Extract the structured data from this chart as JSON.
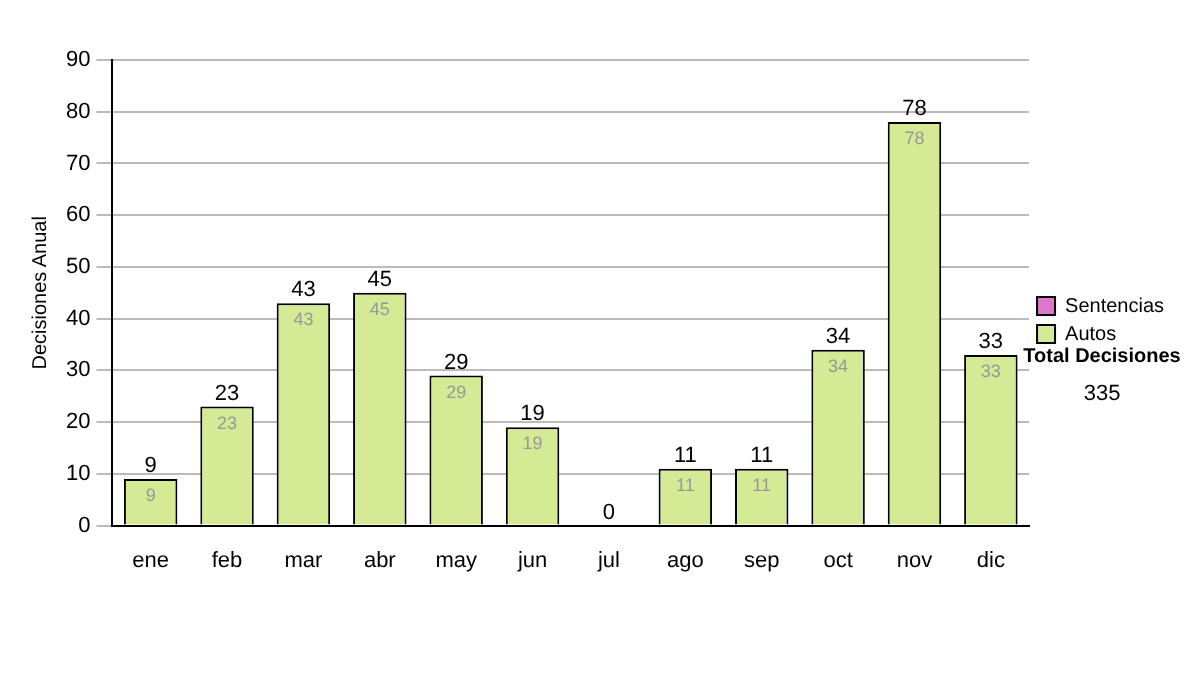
{
  "chart_data": {
    "type": "bar",
    "ylabel": "Decisiones Anual",
    "categories": [
      "ene",
      "feb",
      "mar",
      "abr",
      "may",
      "jun",
      "jul",
      "ago",
      "sep",
      "oct",
      "nov",
      "dic"
    ],
    "series": [
      {
        "name": "Sentencias",
        "color": "#dd77cc",
        "values": [
          0,
          0,
          0,
          0,
          0,
          0,
          0,
          0,
          0,
          0,
          0,
          0
        ]
      },
      {
        "name": "Autos",
        "color": "#d4ea94",
        "values": [
          9,
          23,
          43,
          45,
          29,
          19,
          0,
          11,
          11,
          34,
          78,
          33
        ],
        "value_labels": [
          "9",
          "23",
          "43",
          "45",
          "29",
          "19",
          null,
          "11",
          "11",
          "34",
          "78",
          "33"
        ]
      }
    ],
    "stacked": true,
    "totals": [
      "9",
      "23",
      "43",
      "45",
      "29",
      "19",
      "0",
      "11",
      "11",
      "34",
      "78",
      "33"
    ],
    "ylim": [
      0,
      90
    ],
    "yticks": [
      0,
      10,
      20,
      30,
      40,
      50,
      60,
      70,
      80,
      90
    ],
    "grid": "y",
    "legend": "right",
    "annotations": [
      "Total Decisiones",
      "335"
    ]
  }
}
